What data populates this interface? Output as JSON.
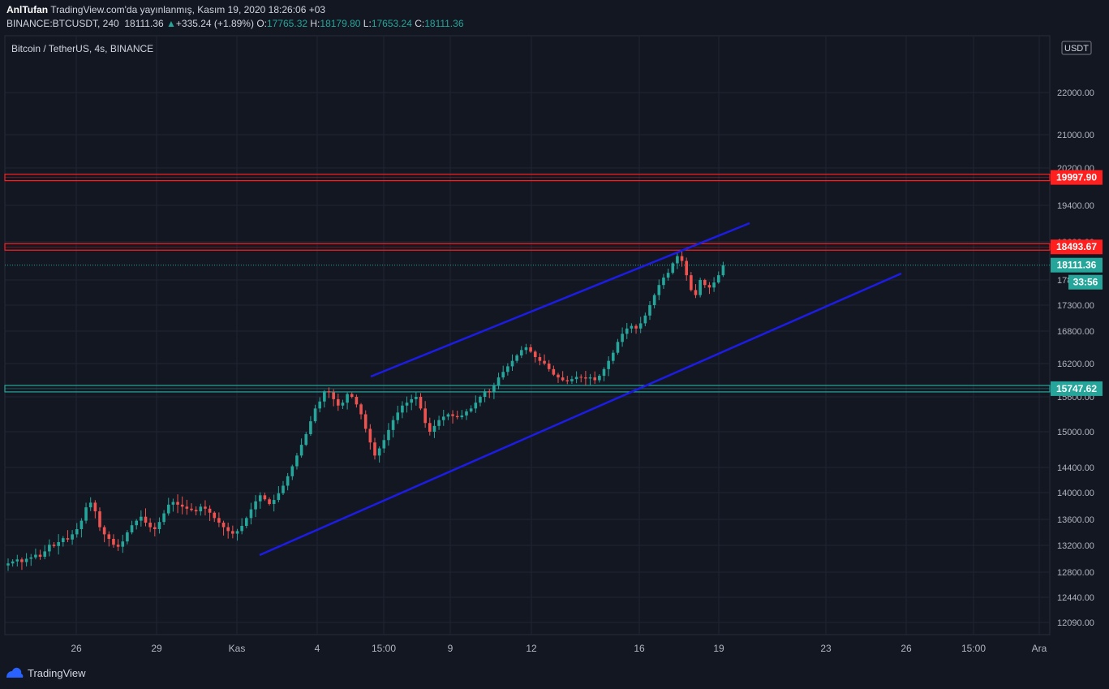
{
  "header": {
    "author": "AnlTufan",
    "published": "TradingView.com'da yayınlanmış, Kasım 19, 2020 18:26:06 +03",
    "symbol": "BINANCE:BTCUSDT, 240",
    "last": "18111.36",
    "change": "+335.24 (+1.89%)",
    "o_label": "O:",
    "o": "17765.32",
    "h_label": "H:",
    "h": "18179.80",
    "l_label": "L:",
    "l": "17653.24",
    "c_label": "C:",
    "c": "18111.36"
  },
  "footer": {
    "brand": "TradingView"
  },
  "chart_data": {
    "type": "candlestick",
    "title": "Bitcoin / TetherUS, 4s, BINANCE",
    "currency": "USDT",
    "y_ticks": [
      "22000.00",
      "21000.00",
      "20200.00",
      "19400.00",
      "18600.00",
      "17800.00",
      "17300.00",
      "16800.00",
      "16200.00",
      "15600.00",
      "15000.00",
      "14400.00",
      "14000.00",
      "13600.00",
      "13200.00",
      "12800.00",
      "12440.00",
      "12090.00"
    ],
    "x_ticks": [
      "26",
      "29",
      "Kas",
      "4",
      "15:00",
      "9",
      "12",
      "16",
      "19",
      "23",
      "26",
      "15:00",
      "Ara"
    ],
    "levels": [
      {
        "value": 19997.9,
        "label": "19997.90",
        "color": "#ff1f1f"
      },
      {
        "value": 18493.67,
        "label": "18493.67",
        "color": "#ff1f1f"
      },
      {
        "value": 15747.62,
        "label": "15747.62",
        "color": "#26a69a"
      }
    ],
    "last_price": {
      "value": 18111.36,
      "label": "18111.36",
      "countdown": "33:56",
      "color": "#26a69a"
    },
    "trend_lines": [
      {
        "from": [
          "Kas 4 15:00",
          15900
        ],
        "to": [
          "Kas 20",
          18900
        ],
        "color": "#1c1ce6"
      },
      {
        "from": [
          "Kas 2",
          13050
        ],
        "to": [
          "Kas 25",
          17750
        ],
        "color": "#1c1ce6"
      }
    ],
    "closes": [
      12930,
      12960,
      12990,
      12950,
      13000,
      13020,
      13060,
      13030,
      13110,
      13210,
      13190,
      13250,
      13310,
      13290,
      13370,
      13450,
      13580,
      13780,
      13850,
      13720,
      13480,
      13370,
      13300,
      13210,
      13180,
      13260,
      13400,
      13510,
      13580,
      13640,
      13550,
      13480,
      13450,
      13560,
      13690,
      13820,
      13860,
      13820,
      13790,
      13760,
      13740,
      13720,
      13790,
      13760,
      13700,
      13620,
      13550,
      13480,
      13420,
      13380,
      13420,
      13500,
      13620,
      13750,
      13870,
      13960,
      13900,
      13830,
      13890,
      13990,
      14110,
      14260,
      14420,
      14600,
      14780,
      14960,
      15180,
      15400,
      15520,
      15700,
      15680,
      15560,
      15450,
      15500,
      15650,
      15600,
      15470,
      15300,
      15050,
      14820,
      14600,
      14720,
      14860,
      15030,
      15200,
      15330,
      15450,
      15500,
      15560,
      15600,
      15400,
      15150,
      15000,
      15100,
      15200,
      15260,
      15300,
      15270,
      15250,
      15280,
      15350,
      15400,
      15500,
      15600,
      15700,
      15680,
      15800,
      15950,
      16050,
      16150,
      16250,
      16350,
      16450,
      16500,
      16420,
      16320,
      16250,
      16200,
      16100,
      16000,
      15950,
      15900,
      15880,
      15920,
      15960,
      15950,
      15930,
      15950,
      15900,
      15980,
      16100,
      16250,
      16400,
      16600,
      16750,
      16850,
      16900,
      16850,
      16950,
      17100,
      17300,
      17500,
      17700,
      17850,
      17950,
      18150,
      18300,
      18200,
      17900,
      17600,
      17500,
      17800,
      17700,
      17650,
      17750,
      17900,
      18111.36
    ]
  }
}
